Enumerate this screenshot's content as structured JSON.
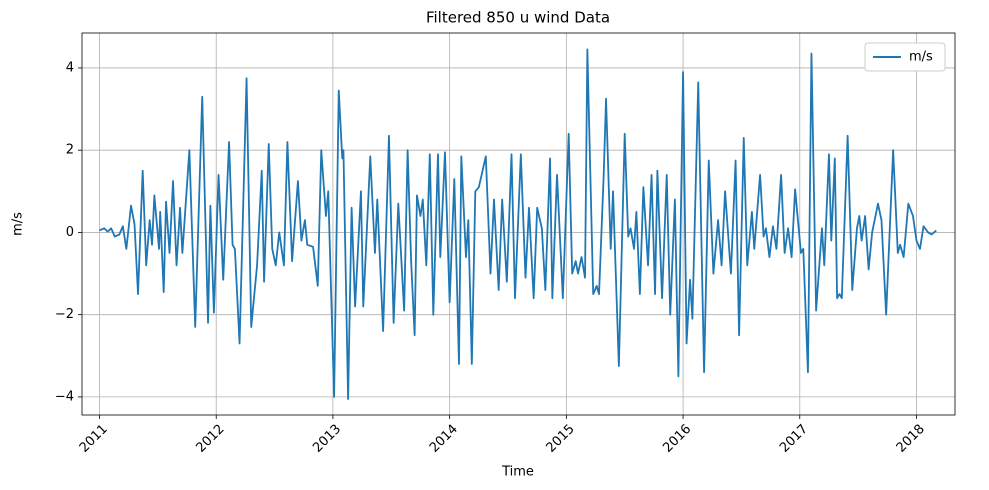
{
  "chart_data": {
    "type": "line",
    "title": "Filtered 850 u wind Data",
    "x_label": "Time",
    "y_label": "m/s",
    "x": [
      2011.0,
      2011.04,
      2011.07,
      2011.1,
      2011.13,
      2011.17,
      2011.2,
      2011.23,
      2011.27,
      2011.3,
      2011.33,
      2011.37,
      2011.4,
      2011.43,
      2011.45,
      2011.47,
      2011.51,
      2011.52,
      2011.55,
      2011.57,
      2011.6,
      2011.63,
      2011.66,
      2011.69,
      2011.71,
      2011.77,
      2011.82,
      2011.88,
      2011.93,
      2011.95,
      2011.98,
      2012.02,
      2012.06,
      2012.11,
      2012.14,
      2012.16,
      2012.2,
      2012.26,
      2012.3,
      2012.35,
      2012.39,
      2012.41,
      2012.45,
      2012.48,
      2012.51,
      2012.54,
      2012.58,
      2012.61,
      2012.65,
      2012.7,
      2012.73,
      2012.76,
      2012.78,
      2012.83,
      2012.87,
      2012.9,
      2012.94,
      2012.96,
      2013.01,
      2013.05,
      2013.08,
      2013.09,
      2013.13,
      2013.16,
      2013.19,
      2013.24,
      2013.26,
      2013.32,
      2013.36,
      2013.38,
      2013.43,
      2013.48,
      2013.52,
      2013.56,
      2013.61,
      2013.64,
      2013.67,
      2013.7,
      2013.72,
      2013.75,
      2013.77,
      2013.8,
      2013.83,
      2013.86,
      2013.9,
      2013.92,
      2013.96,
      2014.0,
      2014.04,
      2014.08,
      2014.1,
      2014.14,
      2014.16,
      2014.19,
      2014.22,
      2014.25,
      2014.31,
      2014.35,
      2014.38,
      2014.42,
      2014.45,
      2014.49,
      2014.53,
      2014.56,
      2014.61,
      2014.65,
      2014.68,
      2014.72,
      2014.75,
      2014.79,
      2014.82,
      2014.86,
      2014.88,
      2014.92,
      2014.97,
      2015.02,
      2015.05,
      2015.08,
      2015.1,
      2015.13,
      2015.16,
      2015.18,
      2015.23,
      2015.26,
      2015.28,
      2015.32,
      2015.34,
      2015.38,
      2015.4,
      2015.45,
      2015.5,
      2015.53,
      2015.55,
      2015.58,
      2015.6,
      2015.63,
      2015.66,
      2015.7,
      2015.73,
      2015.76,
      2015.78,
      2015.82,
      2015.86,
      2015.89,
      2015.93,
      2015.96,
      2016.0,
      2016.03,
      2016.06,
      2016.08,
      2016.13,
      2016.18,
      2016.22,
      2016.26,
      2016.3,
      2016.33,
      2016.36,
      2016.41,
      2016.45,
      2016.48,
      2016.52,
      2016.55,
      2016.59,
      2016.61,
      2016.66,
      2016.69,
      2016.71,
      2016.74,
      2016.77,
      2016.8,
      2016.84,
      2016.87,
      2016.9,
      2016.93,
      2016.96,
      2017.01,
      2017.03,
      2017.07,
      2017.1,
      2017.14,
      2017.19,
      2017.21,
      2017.25,
      2017.27,
      2017.3,
      2017.32,
      2017.34,
      2017.36,
      2017.41,
      2017.45,
      2017.49,
      2017.51,
      2017.53,
      2017.56,
      2017.59,
      2017.62,
      2017.67,
      2017.7,
      2017.74,
      2017.8,
      2017.84,
      2017.86,
      2017.89,
      2017.93,
      2017.97,
      2018.0,
      2018.03,
      2018.06,
      2018.1,
      2018.13,
      2018.17
    ],
    "series": [
      {
        "name": "m/s",
        "color": "#1f77b4",
        "values": [
          0.05,
          0.1,
          0.02,
          0.1,
          -0.1,
          -0.05,
          0.15,
          -0.4,
          0.65,
          0.2,
          -1.5,
          1.5,
          -0.8,
          0.3,
          -0.3,
          0.9,
          -0.4,
          0.5,
          -1.45,
          0.75,
          -0.5,
          1.25,
          -0.8,
          0.6,
          -0.5,
          2.0,
          -2.3,
          3.3,
          -2.2,
          0.65,
          -1.95,
          1.4,
          -1.15,
          2.2,
          -0.3,
          -0.4,
          -2.7,
          3.75,
          -2.3,
          -0.8,
          1.5,
          -1.2,
          2.15,
          -0.4,
          -0.8,
          0.0,
          -0.8,
          2.2,
          -0.7,
          1.25,
          -0.2,
          0.3,
          -0.3,
          -0.35,
          -1.3,
          2.0,
          0.4,
          1.0,
          -4.0,
          3.45,
          1.8,
          2.0,
          -4.05,
          0.6,
          -1.8,
          1.0,
          -1.8,
          1.85,
          -0.5,
          0.8,
          -2.4,
          2.35,
          -2.2,
          0.7,
          -1.9,
          2.0,
          -0.7,
          -2.5,
          0.9,
          0.4,
          0.8,
          -0.8,
          1.9,
          -2.0,
          1.9,
          -0.6,
          1.95,
          -1.7,
          1.3,
          -3.2,
          1.85,
          -0.6,
          0.3,
          -3.2,
          1.0,
          1.1,
          1.85,
          -1.0,
          0.8,
          -1.4,
          0.8,
          -1.2,
          1.9,
          -1.6,
          1.9,
          -1.1,
          0.6,
          -1.6,
          0.6,
          0.1,
          -1.4,
          1.8,
          -1.6,
          1.4,
          -1.6,
          2.4,
          -1.0,
          -0.7,
          -1.0,
          -0.6,
          -1.1,
          4.45,
          -1.5,
          -1.3,
          -1.5,
          1.4,
          3.25,
          -0.4,
          1.0,
          -3.25,
          2.4,
          -0.1,
          0.1,
          -0.4,
          0.5,
          -1.5,
          1.1,
          -0.8,
          1.4,
          -1.5,
          1.5,
          -1.6,
          1.4,
          -2.0,
          0.8,
          -3.5,
          3.9,
          -2.7,
          -1.15,
          -2.1,
          3.65,
          -3.4,
          1.75,
          -1.0,
          0.3,
          -0.8,
          1.0,
          -1.0,
          1.75,
          -2.5,
          2.3,
          -0.8,
          0.5,
          -0.4,
          1.4,
          -0.1,
          0.1,
          -0.6,
          0.15,
          -0.4,
          1.4,
          -0.5,
          0.1,
          -0.6,
          1.05,
          -0.5,
          -0.4,
          -3.4,
          4.35,
          -1.9,
          0.1,
          -0.8,
          1.9,
          -0.2,
          1.8,
          -1.6,
          -1.5,
          -1.6,
          2.35,
          -1.4,
          0.1,
          0.4,
          -0.2,
          0.4,
          -0.9,
          0.0,
          0.7,
          0.3,
          -2.0,
          2.0,
          -0.5,
          -0.3,
          -0.6,
          0.7,
          0.4,
          -0.2,
          -0.4,
          0.15,
          0.0,
          -0.05,
          0.05
        ]
      }
    ],
    "xlim": [
      2010.85,
      2018.33
    ],
    "xticks": [
      2011,
      2012,
      2013,
      2014,
      2015,
      2016,
      2017,
      2018
    ],
    "ylim": [
      -4.44,
      4.85
    ],
    "yticks": [
      {
        "value": -4,
        "label": "−4"
      },
      {
        "value": -2,
        "label": "−2"
      },
      0,
      2,
      4
    ],
    "grid": true,
    "legend": "upper right"
  }
}
